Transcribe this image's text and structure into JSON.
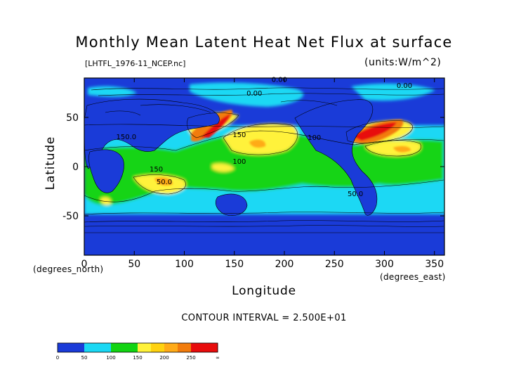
{
  "title": "Monthly Mean Latent Heat Net Flux at surface",
  "file_label": "[LHTFL_1976-11_NCEP.nc]",
  "units_label": "(units:W/m^2)",
  "contour_interval_text": "CONTOUR INTERVAL = 2.500E+01",
  "chart_data": {
    "type": "heatmap",
    "title": "Monthly Mean Latent Heat Net Flux at surface",
    "xlabel": "Longitude",
    "ylabel": "Latitude",
    "x_unit_label": "(degrees_east)",
    "y_unit_label": "(degrees_north)",
    "xlim": [
      0,
      360
    ],
    "ylim": [
      -90,
      90
    ],
    "x_ticks": [
      0,
      50,
      100,
      150,
      200,
      250,
      300,
      350
    ],
    "y_ticks": [
      50,
      0,
      -50
    ],
    "contour_interval": 25,
    "contour_labels": [
      {
        "text": "0.00",
        "lon": 195,
        "lat": 86
      },
      {
        "text": "0.00",
        "lon": 170,
        "lat": 72
      },
      {
        "text": "0.00",
        "lon": 320,
        "lat": 80
      },
      {
        "text": "150.0",
        "lon": 42,
        "lat": 28
      },
      {
        "text": "150",
        "lon": 155,
        "lat": 30
      },
      {
        "text": "100",
        "lon": 230,
        "lat": 27
      },
      {
        "text": "100",
        "lon": 155,
        "lat": 3
      },
      {
        "text": "150",
        "lon": 72,
        "lat": -5
      },
      {
        "text": "50.0",
        "lon": 80,
        "lat": -18
      },
      {
        "text": "50.0",
        "lon": 271,
        "lat": -30
      }
    ],
    "colorbar": {
      "tick_labels": [
        "0",
        "50",
        "100",
        "150",
        "200",
        "250",
        "∞"
      ],
      "colors": [
        "#1a3bd8",
        "#1a3bd8",
        "#1ad8f4",
        "#1ad8f4",
        "#12d412",
        "#12d412",
        "#fff23a",
        "#ffd210",
        "#ffab18",
        "#f27c0c",
        "#e80c0c",
        "#e80c0c"
      ]
    }
  }
}
